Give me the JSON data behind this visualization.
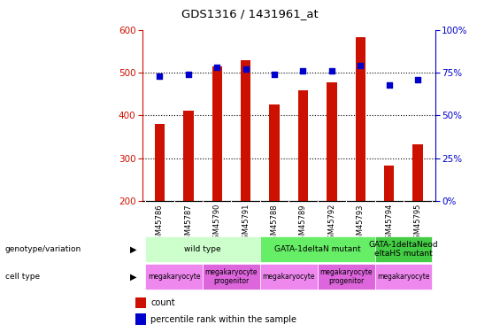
{
  "title": "GDS1316 / 1431961_at",
  "samples": [
    "GSM45786",
    "GSM45787",
    "GSM45790",
    "GSM45791",
    "GSM45788",
    "GSM45789",
    "GSM45792",
    "GSM45793",
    "GSM45794",
    "GSM45795"
  ],
  "counts": [
    380,
    410,
    515,
    530,
    425,
    458,
    477,
    582,
    283,
    333
  ],
  "percentile_ranks": [
    73,
    74,
    78,
    77,
    74,
    76,
    76,
    79,
    68,
    71
  ],
  "ylim_left": [
    200,
    600
  ],
  "ylim_right": [
    0,
    100
  ],
  "yticks_left": [
    200,
    300,
    400,
    500,
    600
  ],
  "yticks_right": [
    0,
    25,
    50,
    75,
    100
  ],
  "bar_color": "#cc1100",
  "dot_color": "#0000cc",
  "tick_area_color": "#c8c8c8",
  "genotype_groups": [
    {
      "label": "wild type",
      "start": 0,
      "end": 4,
      "color": "#ccffcc"
    },
    {
      "label": "GATA-1deltaN mutant",
      "start": 4,
      "end": 8,
      "color": "#66ee66"
    },
    {
      "label": "GATA-1deltaNeod\neltaHS mutant",
      "start": 8,
      "end": 10,
      "color": "#44cc44"
    }
  ],
  "cell_type_groups": [
    {
      "label": "megakaryocyte",
      "start": 0,
      "end": 2,
      "color": "#ee88ee"
    },
    {
      "label": "megakaryocyte\nprogenitor",
      "start": 2,
      "end": 4,
      "color": "#dd66dd"
    },
    {
      "label": "megakaryocyte",
      "start": 4,
      "end": 6,
      "color": "#ee88ee"
    },
    {
      "label": "megakaryocyte\nprogenitor",
      "start": 6,
      "end": 8,
      "color": "#dd66dd"
    },
    {
      "label": "megakaryocyte",
      "start": 8,
      "end": 10,
      "color": "#ee88ee"
    }
  ]
}
